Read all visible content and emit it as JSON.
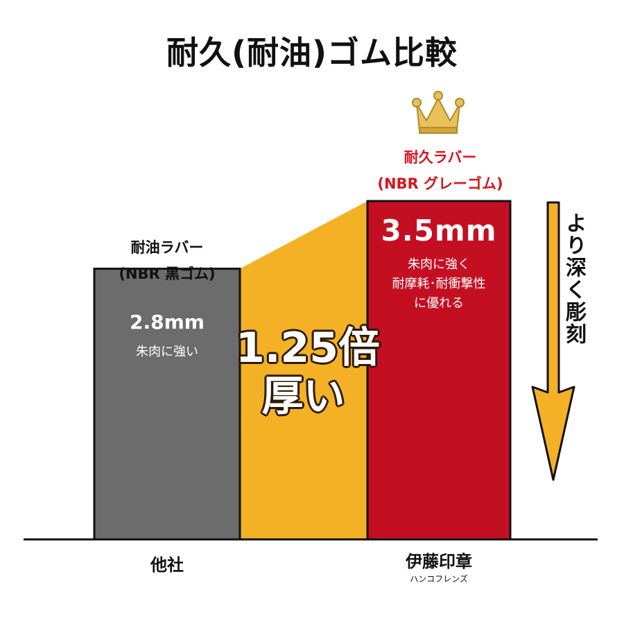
{
  "chart_data": {
    "type": "bar",
    "title": "耐久(耐油)ゴム比較",
    "unit": "mm",
    "ylim": [
      0,
      3.5
    ],
    "categories": [
      "他社",
      "伊藤印章"
    ],
    "category_subtitles": [
      "",
      "ハンコフレンズ"
    ],
    "values": [
      2.8,
      3.5
    ],
    "bars": [
      {
        "label_line1": "耐油ラバー",
        "label_line2": "(NBR 黒ゴム)",
        "value_text": "2.8mm",
        "description": [
          "朱肉に強い"
        ],
        "color": "#6d6c6c"
      },
      {
        "label_line1": "耐久ラバー",
        "label_line2": "(NBR グレーゴム)",
        "value_text": "3.5mm",
        "description": [
          "朱肉に強く",
          "耐摩耗･耐衝撃性",
          "に優れる"
        ],
        "color": "#c40f22"
      }
    ],
    "comparison": {
      "line1": "1.25倍",
      "line2": "厚い",
      "color": "#f4b125"
    },
    "annotation": "より深く彫刻",
    "highlight_label_color": "#d7141d",
    "arrow_color": "#f4b125",
    "crown_color": "#e8c15a"
  }
}
